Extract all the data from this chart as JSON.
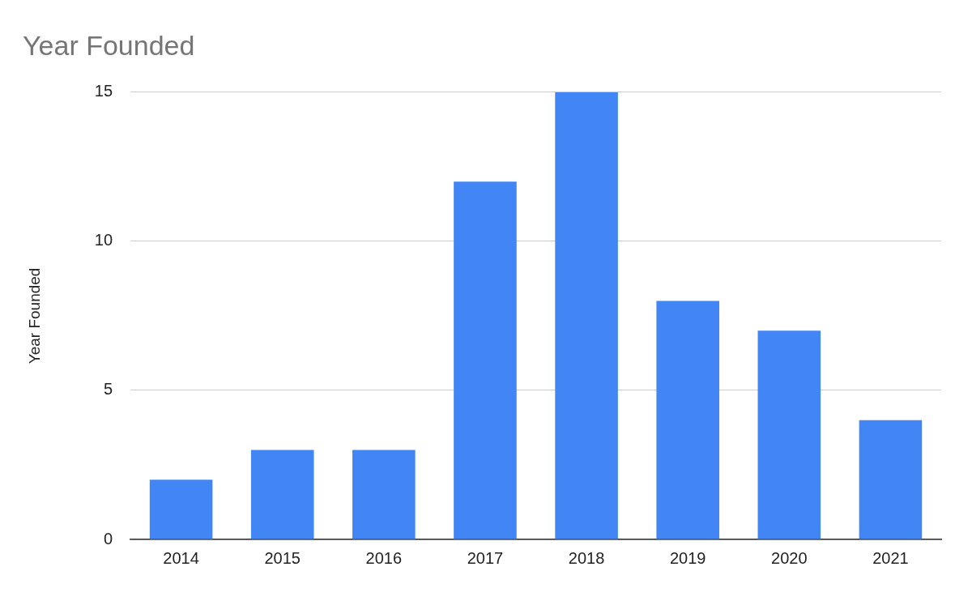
{
  "chart_data": {
    "type": "bar",
    "title": "Year Founded",
    "ylabel": "Year Founded",
    "categories": [
      "2014",
      "2015",
      "2016",
      "2017",
      "2018",
      "2019",
      "2020",
      "2021"
    ],
    "series": [
      {
        "color": "#4285f4",
        "values": [
          2,
          3,
          3,
          12,
          15,
          8,
          7,
          4
        ]
      }
    ],
    "ylim": [
      0,
      15
    ],
    "yticks": [
      0,
      5,
      10,
      15
    ],
    "grid": "y"
  }
}
